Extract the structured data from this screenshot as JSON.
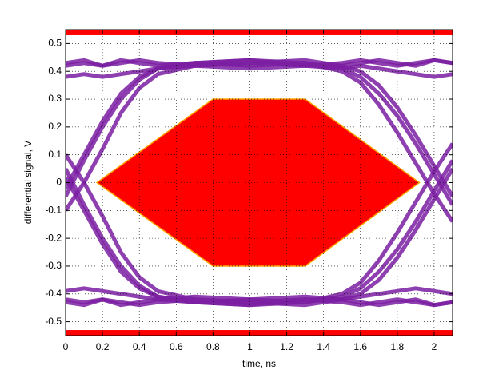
{
  "chart_data": {
    "type": "eye",
    "xlabel": "time, ns",
    "ylabel": "differential signal, V",
    "xlim": [
      0,
      2.1
    ],
    "ylim": [
      -0.55,
      0.55
    ],
    "xticks": [
      0,
      0.2,
      0.4,
      0.6,
      0.8,
      1,
      1.2,
      1.4,
      1.6,
      1.8,
      2
    ],
    "yticks": [
      0.5,
      0.4,
      0.3,
      0.2,
      0.1,
      0,
      -0.1,
      -0.2,
      -0.3,
      -0.4,
      -0.5
    ],
    "grid": true,
    "trace_color": "#7b1fa2",
    "x": [
      0,
      0.1,
      0.2,
      0.3,
      0.4,
      0.5,
      0.7,
      1.0,
      1.3,
      1.5,
      1.6,
      1.7,
      1.8,
      1.9,
      2.0,
      2.1
    ],
    "traces": [
      {
        "values": [
          0.43,
          0.44,
          0.42,
          0.43,
          0.44,
          0.43,
          0.42,
          0.43,
          0.44,
          0.42,
          0.43,
          0.44,
          0.43,
          0.42,
          0.44,
          0.43
        ]
      },
      {
        "values": [
          0.38,
          0.39,
          0.38,
          0.39,
          0.4,
          0.41,
          0.42,
          0.41,
          0.42,
          0.41,
          0.42,
          0.41,
          0.4,
          0.39,
          0.38,
          0.39
        ]
      },
      {
        "values": [
          -0.43,
          -0.44,
          -0.42,
          -0.43,
          -0.44,
          -0.43,
          -0.42,
          -0.43,
          -0.44,
          -0.42,
          -0.43,
          -0.44,
          -0.43,
          -0.42,
          -0.44,
          -0.43
        ]
      },
      {
        "values": [
          -0.39,
          -0.38,
          -0.39,
          -0.4,
          -0.41,
          -0.42,
          -0.41,
          -0.42,
          -0.41,
          -0.42,
          -0.41,
          -0.4,
          -0.39,
          -0.38,
          -0.39,
          -0.4
        ]
      },
      {
        "values": [
          -0.05,
          0.08,
          0.2,
          0.3,
          0.37,
          0.41,
          0.43,
          0.42,
          0.43,
          0.41,
          0.38,
          0.32,
          0.24,
          0.14,
          0.03,
          -0.08
        ]
      },
      {
        "values": [
          0.05,
          -0.08,
          -0.2,
          -0.3,
          -0.37,
          -0.41,
          -0.43,
          -0.42,
          -0.43,
          -0.41,
          -0.38,
          -0.32,
          -0.24,
          -0.14,
          -0.03,
          0.08
        ]
      },
      {
        "values": [
          -0.02,
          0.1,
          0.22,
          0.32,
          0.38,
          0.41,
          0.43,
          0.44,
          0.42,
          0.43,
          0.44,
          0.43,
          0.42,
          0.43,
          0.44,
          0.43
        ]
      },
      {
        "values": [
          0.02,
          -0.1,
          -0.22,
          -0.32,
          -0.38,
          -0.41,
          -0.43,
          -0.44,
          -0.42,
          -0.43,
          -0.44,
          -0.43,
          -0.42,
          -0.43,
          -0.44,
          -0.43
        ]
      },
      {
        "values": [
          0.42,
          0.43,
          0.42,
          0.44,
          0.43,
          0.42,
          0.43,
          0.44,
          0.43,
          0.4,
          0.36,
          0.28,
          0.18,
          0.07,
          -0.04,
          -0.14
        ]
      },
      {
        "values": [
          -0.42,
          -0.43,
          -0.42,
          -0.44,
          -0.43,
          -0.42,
          -0.43,
          -0.44,
          -0.43,
          -0.4,
          -0.36,
          -0.28,
          -0.18,
          -0.07,
          0.04,
          0.14
        ]
      },
      {
        "values": [
          0.1,
          0.0,
          0.12,
          0.25,
          0.34,
          0.39,
          0.42,
          0.43,
          0.42,
          0.42,
          0.4,
          0.35,
          0.27,
          0.17,
          0.06,
          -0.05
        ]
      },
      {
        "values": [
          -0.1,
          0.0,
          -0.12,
          -0.25,
          -0.34,
          -0.39,
          -0.42,
          -0.43,
          -0.42,
          -0.42,
          -0.4,
          -0.35,
          -0.27,
          -0.17,
          -0.06,
          0.05
        ]
      }
    ],
    "mask": {
      "color": "#ff0000",
      "edge": "#ffa500",
      "x": [
        0.17,
        0.8,
        1.3,
        1.92,
        1.3,
        0.8
      ],
      "y": [
        0,
        0.3,
        0.3,
        0,
        -0.3,
        -0.3
      ]
    },
    "bands": [
      [
        0.53,
        0.55
      ],
      [
        -0.55,
        -0.53
      ]
    ]
  }
}
